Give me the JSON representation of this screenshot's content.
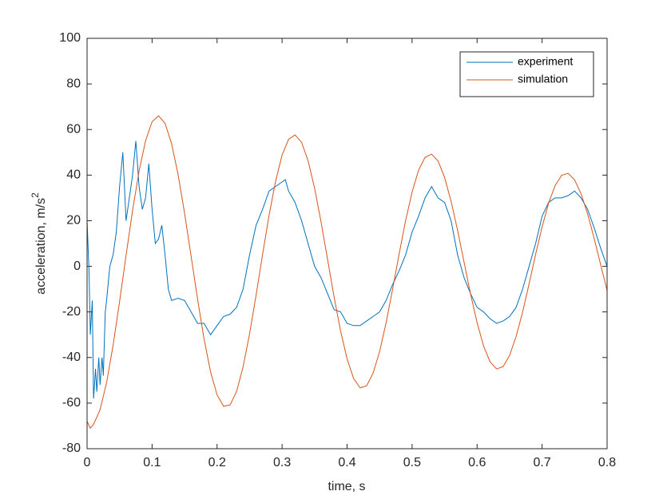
{
  "chart_data": {
    "type": "line",
    "xlabel": "time, s",
    "ylabel": "acceleration, m/s",
    "ylabel_superscript": "2",
    "xlim": [
      0,
      0.8
    ],
    "ylim": [
      -80,
      100
    ],
    "xticks": [
      0,
      0.1,
      0.2,
      0.3,
      0.4,
      0.5,
      0.6,
      0.7,
      0.8
    ],
    "yticks": [
      -80,
      -60,
      -40,
      -20,
      0,
      20,
      40,
      60,
      80,
      100
    ],
    "grid": false,
    "legend": "northeast",
    "series": [
      {
        "name": "experiment",
        "color": "#0072bd",
        "x": [
          0,
          0.003,
          0.005,
          0.008,
          0.01,
          0.013,
          0.015,
          0.018,
          0.02,
          0.023,
          0.025,
          0.028,
          0.03,
          0.035,
          0.04,
          0.045,
          0.05,
          0.055,
          0.06,
          0.065,
          0.07,
          0.075,
          0.08,
          0.085,
          0.09,
          0.095,
          0.1,
          0.105,
          0.11,
          0.115,
          0.12,
          0.125,
          0.13,
          0.14,
          0.15,
          0.16,
          0.17,
          0.18,
          0.19,
          0.2,
          0.21,
          0.22,
          0.23,
          0.24,
          0.25,
          0.26,
          0.27,
          0.28,
          0.29,
          0.3,
          0.305,
          0.31,
          0.32,
          0.33,
          0.34,
          0.35,
          0.36,
          0.37,
          0.38,
          0.39,
          0.4,
          0.41,
          0.42,
          0.43,
          0.44,
          0.45,
          0.46,
          0.47,
          0.48,
          0.49,
          0.5,
          0.51,
          0.52,
          0.53,
          0.54,
          0.55,
          0.56,
          0.57,
          0.58,
          0.59,
          0.6,
          0.61,
          0.62,
          0.63,
          0.64,
          0.65,
          0.66,
          0.67,
          0.68,
          0.69,
          0.7,
          0.71,
          0.72,
          0.73,
          0.74,
          0.75,
          0.76,
          0.77,
          0.78,
          0.79,
          0.8
        ],
        "values": [
          20,
          -2,
          -30,
          -15,
          -58,
          -45,
          -55,
          -40,
          -52,
          -40,
          -48,
          -20,
          -15,
          0,
          5,
          15,
          35,
          50,
          20,
          30,
          40,
          55,
          35,
          25,
          30,
          45,
          25,
          10,
          12,
          18,
          5,
          -10,
          -15,
          -14,
          -15,
          -20,
          -25,
          -25,
          -30,
          -26,
          -22,
          -21,
          -18,
          -10,
          5,
          18,
          25,
          33,
          35,
          37,
          38,
          33,
          28,
          20,
          10,
          0,
          -5,
          -12,
          -19,
          -20,
          -25,
          -26,
          -26,
          -24,
          -22,
          -20,
          -15,
          -8,
          -2,
          5,
          15,
          22,
          30,
          35,
          30,
          28,
          20,
          5,
          -5,
          -12,
          -18,
          -20,
          -23,
          -25,
          -24,
          -22,
          -18,
          -10,
          0,
          10,
          22,
          28,
          30,
          30,
          31,
          33,
          30,
          25,
          17,
          8,
          0
        ]
      },
      {
        "name": "simulation",
        "color": "#d95319",
        "x": [
          0,
          0.005,
          0.01,
          0.02,
          0.03,
          0.04,
          0.05,
          0.06,
          0.07,
          0.08,
          0.09,
          0.1,
          0.11,
          0.12,
          0.13,
          0.14,
          0.15,
          0.16,
          0.17,
          0.18,
          0.19,
          0.2,
          0.21,
          0.22,
          0.23,
          0.24,
          0.25,
          0.26,
          0.27,
          0.28,
          0.29,
          0.3,
          0.31,
          0.32,
          0.33,
          0.34,
          0.35,
          0.36,
          0.37,
          0.38,
          0.39,
          0.4,
          0.41,
          0.42,
          0.43,
          0.44,
          0.45,
          0.46,
          0.47,
          0.48,
          0.49,
          0.5,
          0.51,
          0.52,
          0.53,
          0.54,
          0.55,
          0.56,
          0.57,
          0.58,
          0.59,
          0.6,
          0.61,
          0.62,
          0.63,
          0.64,
          0.65,
          0.66,
          0.67,
          0.68,
          0.69,
          0.7,
          0.71,
          0.72,
          0.73,
          0.74,
          0.75,
          0.76,
          0.77,
          0.78,
          0.79,
          0.8
        ],
        "values": [
          -68,
          -71,
          -69.3,
          -62.9,
          -51,
          -34.7,
          -15.5,
          4.8,
          24.5,
          41.8,
          55.1,
          63.4,
          66,
          62.7,
          53.8,
          40.3,
          23.3,
          4.5,
          -14.4,
          -31.9,
          -46.3,
          -56.4,
          -61.4,
          -60.8,
          -54.9,
          -44.1,
          -29.6,
          -12.7,
          5.2,
          22.4,
          37.3,
          48.8,
          55.7,
          57.6,
          54.4,
          46.3,
          34.3,
          19.4,
          3,
          -13.4,
          -28.4,
          -40.6,
          -49.2,
          -53.3,
          -52.4,
          -46.9,
          -37.4,
          -24.8,
          -10.1,
          5.3,
          20,
          32.6,
          42.2,
          47.8,
          49.2,
          46.2,
          39,
          28.5,
          15.8,
          1.8,
          -12.2,
          -24.7,
          -35,
          -41.9,
          -45,
          -44,
          -39.1,
          -30.8,
          -20.1,
          -7.7,
          5.2,
          17.3,
          27.7,
          35.4,
          39.9,
          40.8,
          37.9,
          31.8,
          23,
          12.3,
          0.8,
          -10.6
        ]
      }
    ]
  }
}
